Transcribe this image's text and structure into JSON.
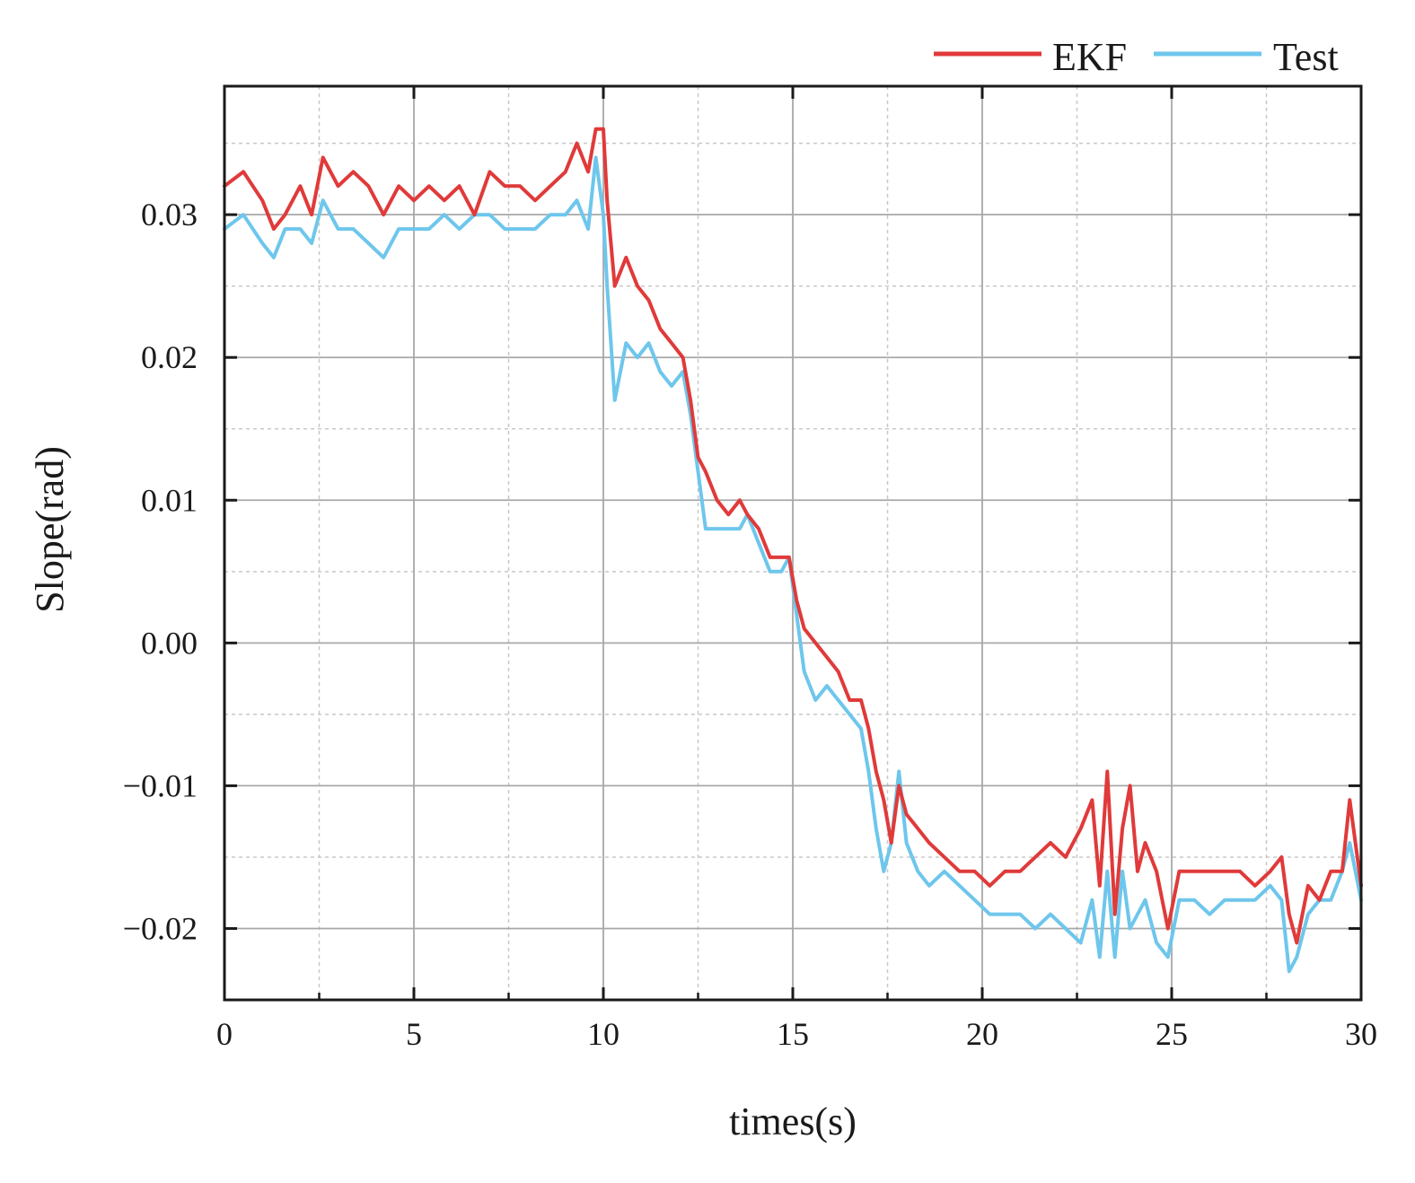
{
  "chart_data": {
    "type": "line",
    "title": "",
    "xlabel": "times(s)",
    "ylabel": "Slope(rad)",
    "xlim": [
      0,
      30
    ],
    "ylim": [
      -0.025,
      0.039
    ],
    "xticks": [
      0,
      5,
      10,
      15,
      20,
      25,
      30
    ],
    "xtick_labels": [
      "0",
      "5",
      "10",
      "15",
      "20",
      "25",
      "30"
    ],
    "yticks": [
      -0.02,
      -0.01,
      0.0,
      0.01,
      0.02,
      0.03
    ],
    "ytick_labels": [
      "−0.02",
      "−0.01",
      "0.00",
      "0.01",
      "0.02",
      "0.03"
    ],
    "grid": true,
    "legend_position": "top-right, above plot",
    "colors": {
      "EKF": "#e03a3a",
      "Test": "#6ec6ec"
    },
    "series": [
      {
        "name": "EKF",
        "x": [
          0,
          0.5,
          1,
          1.3,
          1.6,
          2,
          2.3,
          2.6,
          3,
          3.4,
          3.8,
          4.2,
          4.6,
          5,
          5.4,
          5.8,
          6.2,
          6.6,
          7,
          7.4,
          7.8,
          8.2,
          8.6,
          9,
          9.3,
          9.6,
          9.8,
          10,
          10.1,
          10.3,
          10.6,
          10.9,
          11.2,
          11.5,
          11.8,
          12.1,
          12.3,
          12.5,
          12.7,
          13,
          13.3,
          13.6,
          13.8,
          14.1,
          14.4,
          14.7,
          14.9,
          15.1,
          15.3,
          15.6,
          15.9,
          16.2,
          16.5,
          16.8,
          17,
          17.2,
          17.4,
          17.6,
          17.8,
          18,
          18.3,
          18.6,
          19,
          19.4,
          19.8,
          20.2,
          20.6,
          21,
          21.4,
          21.8,
          22.2,
          22.6,
          22.9,
          23.1,
          23.3,
          23.5,
          23.7,
          23.9,
          24.1,
          24.3,
          24.6,
          24.9,
          25.2,
          25.6,
          26,
          26.4,
          26.8,
          27.2,
          27.6,
          27.9,
          28.1,
          28.3,
          28.6,
          28.9,
          29.2,
          29.5,
          29.7,
          30
        ],
        "y": [
          0.032,
          0.033,
          0.031,
          0.029,
          0.03,
          0.032,
          0.03,
          0.034,
          0.032,
          0.033,
          0.032,
          0.03,
          0.032,
          0.031,
          0.032,
          0.031,
          0.032,
          0.03,
          0.033,
          0.032,
          0.032,
          0.031,
          0.032,
          0.033,
          0.035,
          0.033,
          0.036,
          0.036,
          0.031,
          0.025,
          0.027,
          0.025,
          0.024,
          0.022,
          0.021,
          0.02,
          0.017,
          0.013,
          0.012,
          0.01,
          0.009,
          0.01,
          0.009,
          0.008,
          0.006,
          0.006,
          0.006,
          0.003,
          0.001,
          0.0,
          -0.001,
          -0.002,
          -0.004,
          -0.004,
          -0.006,
          -0.009,
          -0.011,
          -0.014,
          -0.01,
          -0.012,
          -0.013,
          -0.014,
          -0.015,
          -0.016,
          -0.016,
          -0.017,
          -0.016,
          -0.016,
          -0.015,
          -0.014,
          -0.015,
          -0.013,
          -0.011,
          -0.017,
          -0.009,
          -0.019,
          -0.013,
          -0.01,
          -0.016,
          -0.014,
          -0.016,
          -0.02,
          -0.016,
          -0.016,
          -0.016,
          -0.016,
          -0.016,
          -0.017,
          -0.016,
          -0.015,
          -0.019,
          -0.021,
          -0.017,
          -0.018,
          -0.016,
          -0.016,
          -0.011,
          -0.017
        ]
      },
      {
        "name": "Test",
        "x": [
          0,
          0.5,
          1,
          1.3,
          1.6,
          2,
          2.3,
          2.6,
          3,
          3.4,
          3.8,
          4.2,
          4.6,
          5,
          5.4,
          5.8,
          6.2,
          6.6,
          7,
          7.4,
          7.8,
          8.2,
          8.6,
          9,
          9.3,
          9.6,
          9.8,
          10,
          10.1,
          10.3,
          10.6,
          10.9,
          11.2,
          11.5,
          11.8,
          12.1,
          12.3,
          12.5,
          12.7,
          13,
          13.3,
          13.6,
          13.8,
          14.1,
          14.4,
          14.7,
          14.9,
          15.1,
          15.3,
          15.6,
          15.9,
          16.2,
          16.5,
          16.8,
          17,
          17.2,
          17.4,
          17.6,
          17.8,
          18,
          18.3,
          18.6,
          19,
          19.4,
          19.8,
          20.2,
          20.6,
          21,
          21.4,
          21.8,
          22.2,
          22.6,
          22.9,
          23.1,
          23.3,
          23.5,
          23.7,
          23.9,
          24.1,
          24.3,
          24.6,
          24.9,
          25.2,
          25.6,
          26,
          26.4,
          26.8,
          27.2,
          27.6,
          27.9,
          28.1,
          28.3,
          28.6,
          28.9,
          29.2,
          29.5,
          29.7,
          30
        ],
        "y": [
          0.029,
          0.03,
          0.028,
          0.027,
          0.029,
          0.029,
          0.028,
          0.031,
          0.029,
          0.029,
          0.028,
          0.027,
          0.029,
          0.029,
          0.029,
          0.03,
          0.029,
          0.03,
          0.03,
          0.029,
          0.029,
          0.029,
          0.03,
          0.03,
          0.031,
          0.029,
          0.034,
          0.03,
          0.025,
          0.017,
          0.021,
          0.02,
          0.021,
          0.019,
          0.018,
          0.019,
          0.016,
          0.012,
          0.008,
          0.008,
          0.008,
          0.008,
          0.009,
          0.007,
          0.005,
          0.005,
          0.006,
          0.002,
          -0.002,
          -0.004,
          -0.003,
          -0.004,
          -0.005,
          -0.006,
          -0.009,
          -0.013,
          -0.016,
          -0.014,
          -0.009,
          -0.014,
          -0.016,
          -0.017,
          -0.016,
          -0.017,
          -0.018,
          -0.019,
          -0.019,
          -0.019,
          -0.02,
          -0.019,
          -0.02,
          -0.021,
          -0.018,
          -0.022,
          -0.016,
          -0.022,
          -0.016,
          -0.02,
          -0.019,
          -0.018,
          -0.021,
          -0.022,
          -0.018,
          -0.018,
          -0.019,
          -0.018,
          -0.018,
          -0.018,
          -0.017,
          -0.018,
          -0.023,
          -0.022,
          -0.019,
          -0.018,
          -0.018,
          -0.016,
          -0.014,
          -0.018
        ]
      }
    ]
  }
}
